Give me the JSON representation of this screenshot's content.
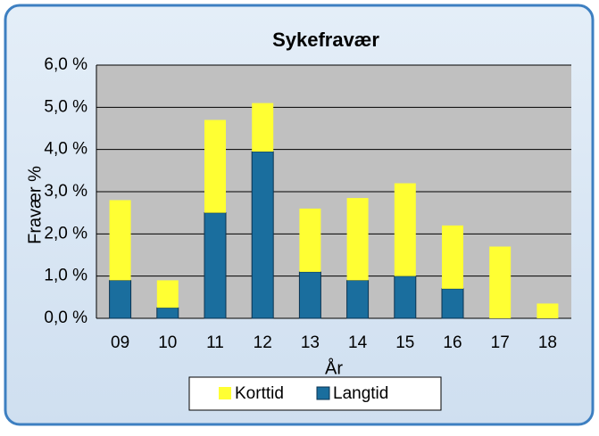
{
  "chart_data": {
    "type": "stacked_bar",
    "title": "Sykefravær",
    "x_label": "År",
    "y_label": "Fravær %",
    "categories": [
      "09",
      "10",
      "11",
      "12",
      "13",
      "14",
      "15",
      "16",
      "17",
      "18"
    ],
    "series": [
      {
        "name": "Korttid",
        "color": "#ffff33",
        "values": [
          1.9,
          0.65,
          2.2,
          1.15,
          1.5,
          1.95,
          2.2,
          1.5,
          1.7,
          0.35
        ]
      },
      {
        "name": "Langtid",
        "color": "#1a6e9e",
        "values": [
          0.9,
          0.25,
          2.5,
          3.95,
          1.1,
          0.9,
          1.0,
          0.7,
          0,
          0
        ]
      }
    ],
    "ylim": [
      0,
      6
    ],
    "yticks": [
      {
        "value": 0,
        "label": "0,0 %"
      },
      {
        "value": 1,
        "label": "1,0 %"
      },
      {
        "value": 2,
        "label": "2,0 %"
      },
      {
        "value": 3,
        "label": "3,0 %"
      },
      {
        "value": 4,
        "label": "4,0 %"
      },
      {
        "value": 5,
        "label": "5,0 %"
      },
      {
        "value": 6,
        "label": "6,0 %"
      }
    ],
    "grid": true,
    "legend": "bottom"
  }
}
